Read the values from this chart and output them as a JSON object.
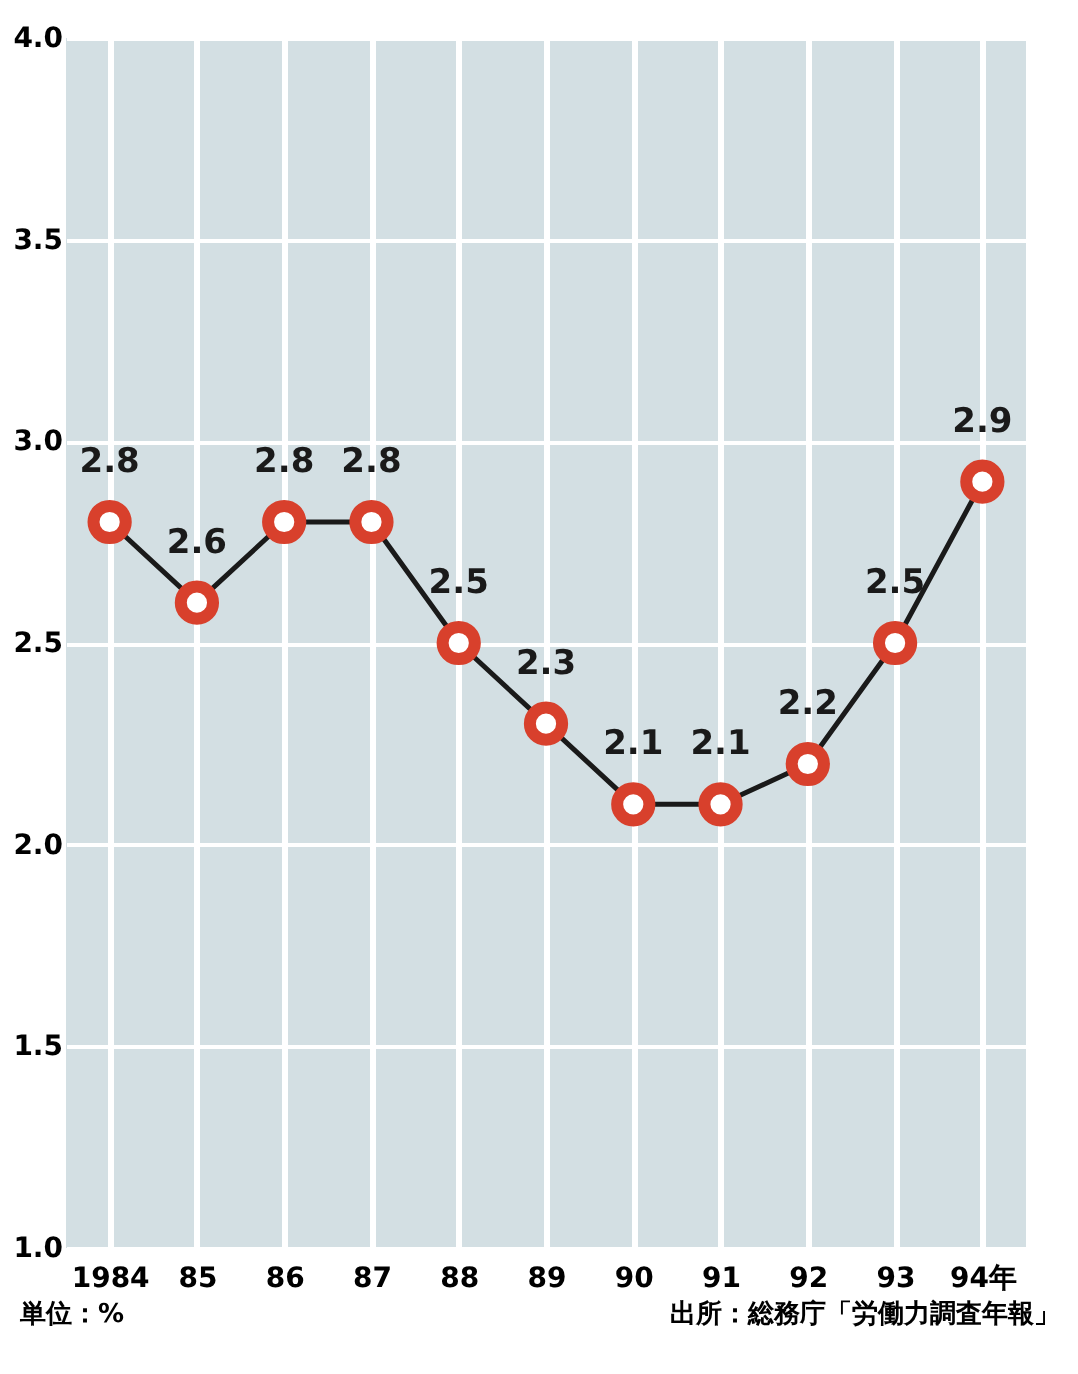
{
  "chart_data": {
    "type": "line",
    "categories": [
      "1984",
      "85",
      "86",
      "87",
      "88",
      "89",
      "90",
      "91",
      "92",
      "93",
      "94年"
    ],
    "series": [
      {
        "color": "#1a1a1a",
        "values": [
          2.8,
          2.6,
          2.8,
          2.8,
          2.5,
          2.3,
          2.1,
          2.1,
          2.2,
          2.5,
          2.9
        ]
      }
    ],
    "ylim": [
      1.0,
      4.0
    ],
    "yticks": [
      {
        "value": 1,
        "label": "1.0"
      },
      1.5,
      {
        "value": 2,
        "label": "2.0"
      },
      2.5,
      {
        "value": 3,
        "label": "3.0"
      },
      3.5,
      {
        "value": 4,
        "label": "4.0"
      }
    ],
    "grid": true,
    "marker": "circle",
    "line_style": "solid",
    "data_labels": true,
    "annotations": [
      "単位：%",
      "出所：総務庁「労働力調査年報」"
    ]
  }
}
